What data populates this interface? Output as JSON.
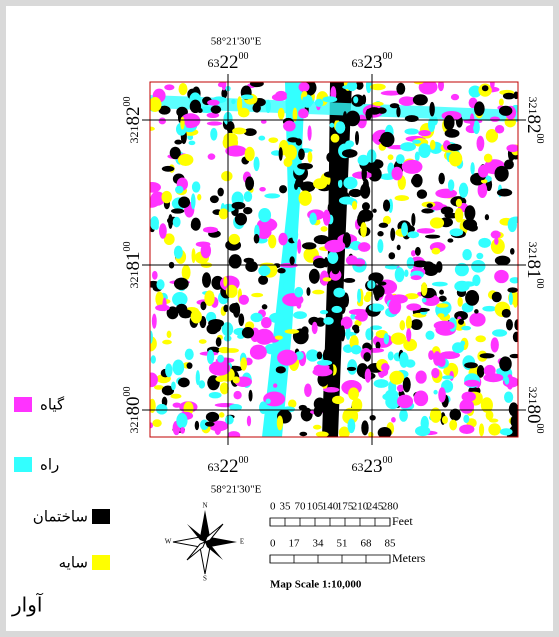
{
  "map": {
    "grid_labels": {
      "top_lon": "58°21'30\"E",
      "bottom_lon": "58°21'30\"E",
      "top": [
        {
          "prefix": "63",
          "main": "22",
          "suffix": "00"
        },
        {
          "prefix": "63",
          "main": "23",
          "suffix": "00"
        }
      ],
      "bottom": [
        {
          "prefix": "63",
          "main": "22",
          "suffix": "00"
        },
        {
          "prefix": "63",
          "main": "23",
          "suffix": "00"
        }
      ],
      "left": [
        {
          "prefix": "321",
          "main": "82",
          "suffix": "00"
        },
        {
          "prefix": "321",
          "main": "81",
          "suffix": "00"
        },
        {
          "prefix": "321",
          "main": "80",
          "suffix": "00"
        }
      ],
      "right": [
        {
          "prefix": "321",
          "main": "82",
          "suffix": "00"
        },
        {
          "prefix": "321",
          "main": "81",
          "suffix": "00"
        },
        {
          "prefix": "321",
          "main": "80",
          "suffix": "00"
        }
      ]
    },
    "legend": [
      {
        "label": "گیاه",
        "color": "#ff33ff"
      },
      {
        "label": "راه",
        "color": "#33ffff"
      },
      {
        "label": "ساختمان",
        "color": "#000000"
      },
      {
        "label": "سایه",
        "color": "#ffff00"
      }
    ],
    "extra_label": "آوار",
    "north_arrow": {
      "n": "N",
      "s": "S",
      "e": "E",
      "w": "W"
    },
    "scale_bar": {
      "feet": [
        0,
        35,
        70,
        105,
        140,
        175,
        210,
        245,
        280
      ],
      "feet_unit": "Feet",
      "meters": [
        0,
        17,
        34,
        51,
        68,
        85
      ],
      "meters_unit": "Meters",
      "text": "Map Scale 1:10,000"
    }
  }
}
